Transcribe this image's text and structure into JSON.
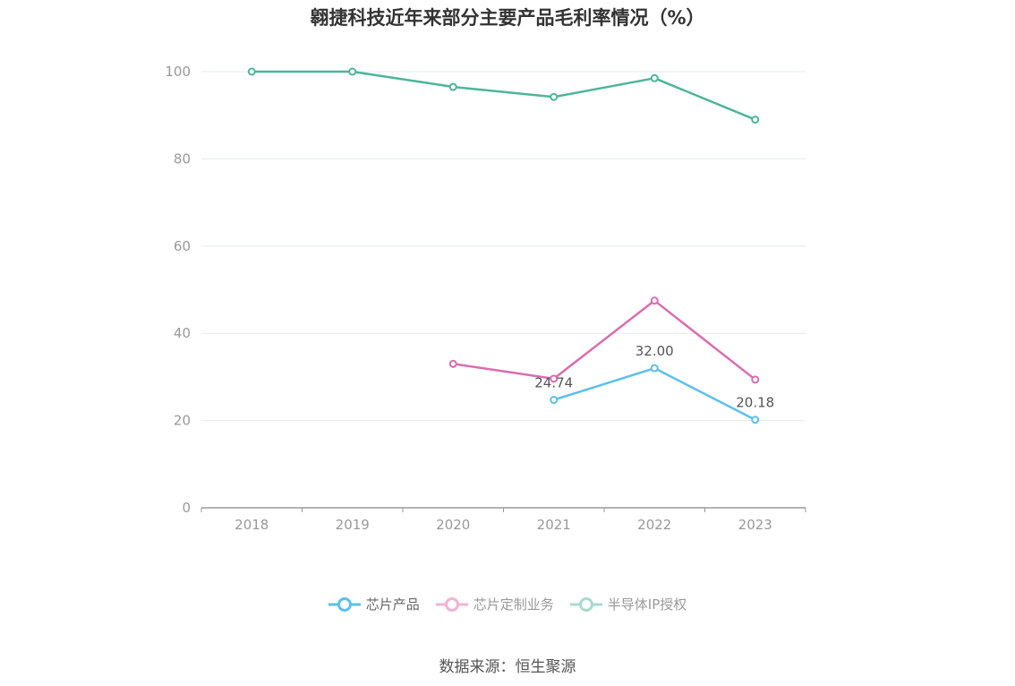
{
  "title": "翱捷科技近年来部分主要产品毛利率情况（%）",
  "source": "数据来源：恒生聚源",
  "colors": {
    "chip_products": "#5bc0eb",
    "chip_custom": "#d96db0",
    "ip_license": "#4db59a",
    "grid": "#e6e9f0",
    "axis": "#999999",
    "tick": "#999999"
  },
  "chart_data": {
    "type": "line",
    "categories": [
      "2018",
      "2019",
      "2020",
      "2021",
      "2022",
      "2023"
    ],
    "ylim": [
      0,
      100
    ],
    "yticks": [
      0,
      20,
      40,
      60,
      80,
      100
    ],
    "grid": true,
    "legend_position": "bottom-center",
    "series": [
      {
        "name": "芯片产品",
        "values": [
          null,
          null,
          null,
          24.74,
          32.0,
          20.18
        ],
        "labels": [
          null,
          null,
          null,
          "24.74",
          "32.00",
          "20.18"
        ],
        "color": "#5bc0eb",
        "legend_active": true
      },
      {
        "name": "芯片定制业务",
        "values": [
          null,
          null,
          33.0,
          29.6,
          47.5,
          29.4
        ],
        "labels": [
          null,
          null,
          null,
          null,
          null,
          null
        ],
        "color": "#d96db0",
        "legend_active": false
      },
      {
        "name": "半导体IP授权",
        "values": [
          100.0,
          100.0,
          96.5,
          94.2,
          98.5,
          89.0
        ],
        "labels": [
          null,
          null,
          null,
          null,
          null,
          null
        ],
        "color": "#4db59a",
        "legend_active": false
      }
    ]
  }
}
